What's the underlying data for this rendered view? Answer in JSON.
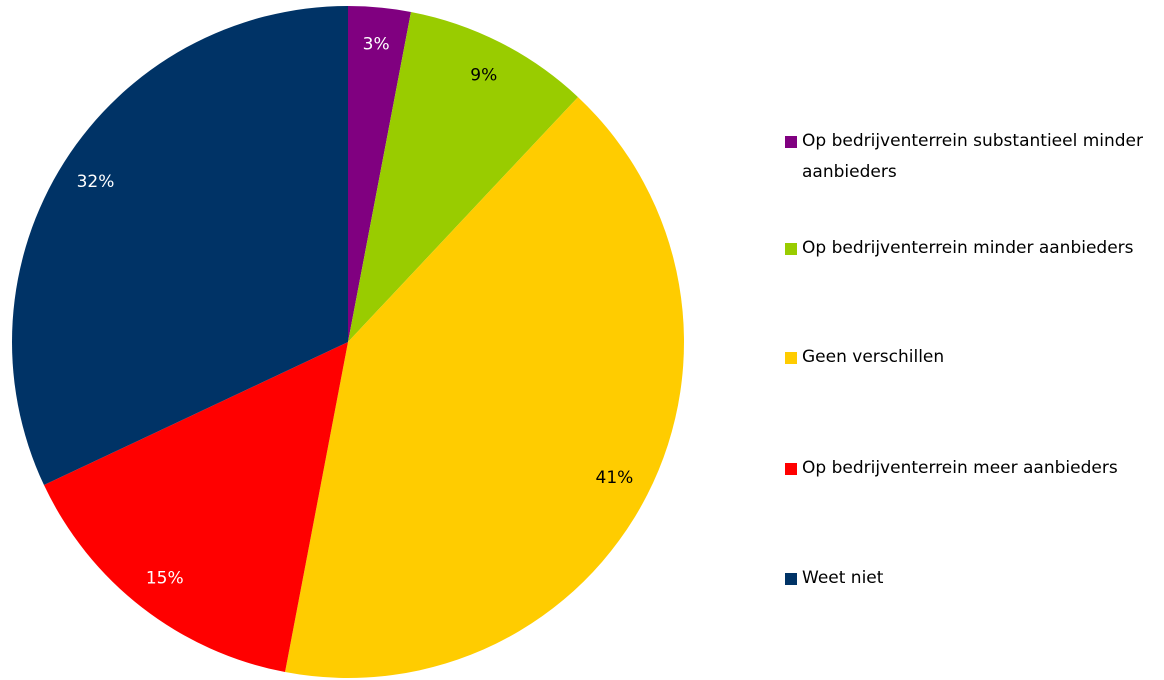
{
  "chart_data": {
    "type": "pie",
    "categories": [
      "Op bedrijventerrein substantieel minder aanbieders",
      "Op bedrijventerrein minder aanbieders",
      "Geen verschillen",
      "Op bedrijventerrein meer aanbieders",
      "Weet niet"
    ],
    "values": [
      3,
      9,
      41,
      15,
      32
    ],
    "value_labels": [
      "3%",
      "9%",
      "41%",
      "15%",
      "32%"
    ],
    "colors": [
      "#800080",
      "#99cc00",
      "#ffcc00",
      "#ff0000",
      "#003366"
    ]
  }
}
